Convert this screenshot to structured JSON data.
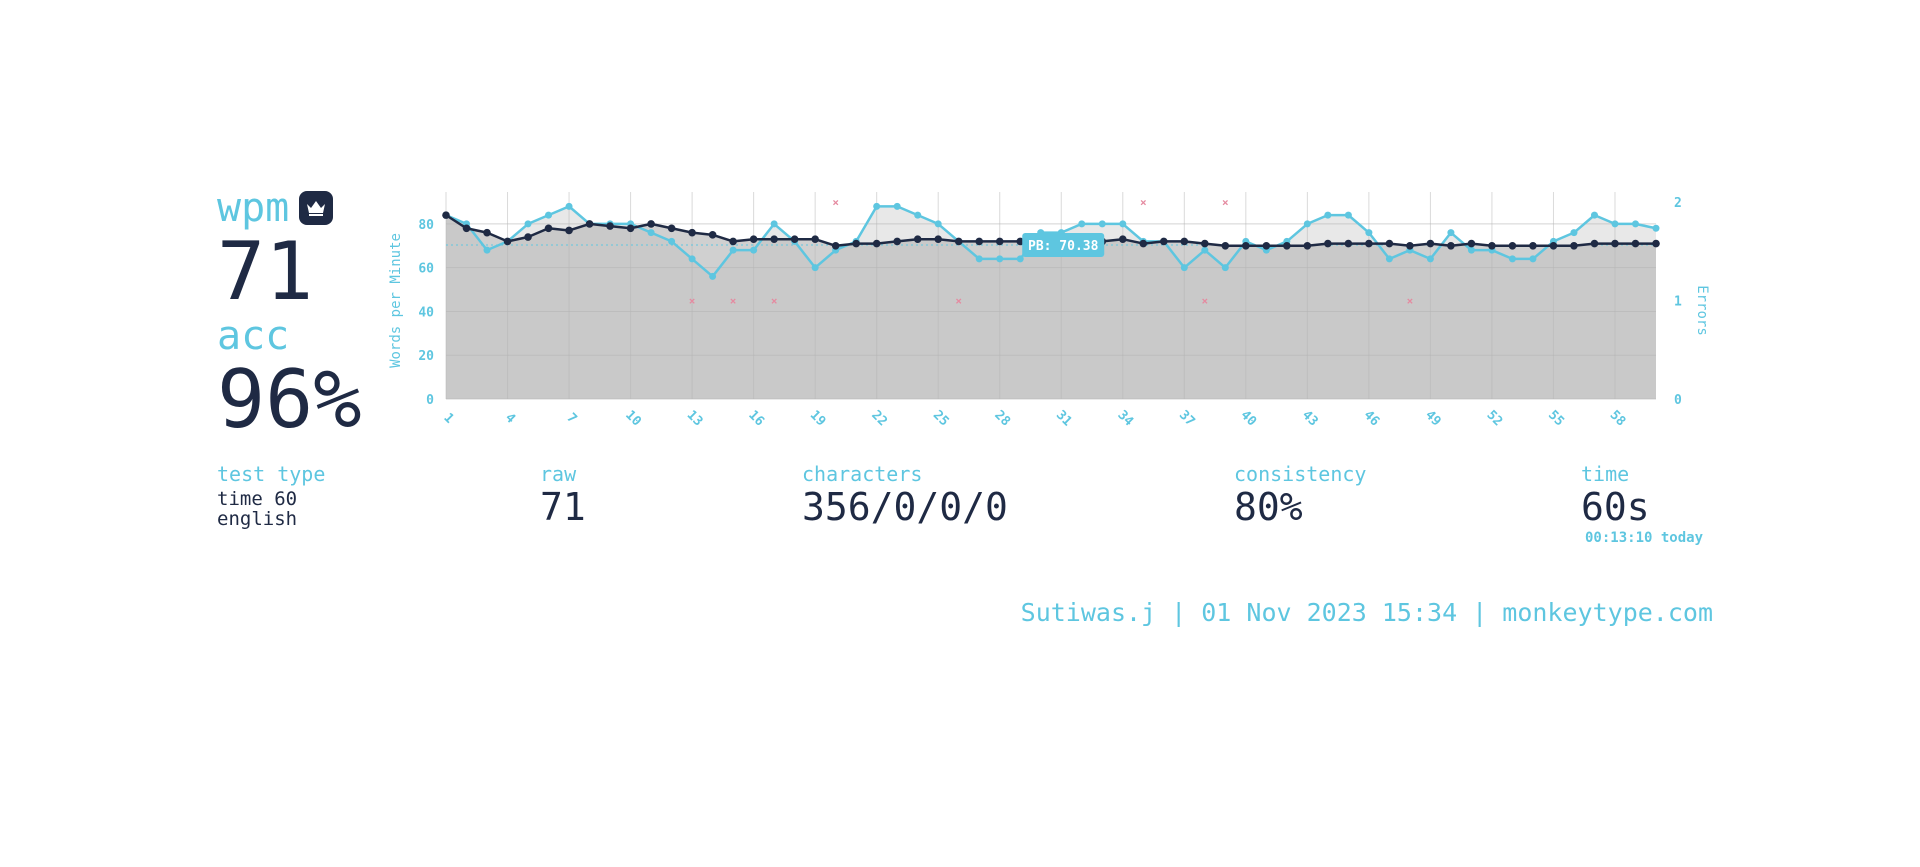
{
  "stats": {
    "wpm_label": "wpm",
    "wpm_value": "71",
    "acc_label": "acc",
    "acc_value": "96%",
    "crown_icon": "crown-icon"
  },
  "details": {
    "test_type_label": "test type",
    "test_type_line1": "time 60",
    "test_type_line2": "english",
    "raw_label": "raw",
    "raw_value": "71",
    "characters_label": "characters",
    "characters_value": "356/0/0/0",
    "consistency_label": "consistency",
    "consistency_value": "80%",
    "time_label": "time",
    "time_value": "60s",
    "time_today": "00:13:10 today"
  },
  "footer": "Sutiwas.j | 01 Nov 2023 15:34 | monkeytype.com",
  "colors": {
    "accent": "#5ec6e0",
    "text": "#1f2a44",
    "error": "#e58aa0",
    "fill": "#d0d0d0"
  },
  "chart_data": {
    "type": "line",
    "ylabel": "Words per Minute",
    "y2label": "Errors",
    "ylim": [
      0,
      90
    ],
    "y2lim": [
      0,
      2
    ],
    "yticks": [
      0,
      20,
      40,
      60,
      80
    ],
    "y2ticks": [
      0,
      1,
      2
    ],
    "x": [
      1,
      2,
      3,
      4,
      5,
      6,
      7,
      8,
      9,
      10,
      11,
      12,
      13,
      14,
      15,
      16,
      17,
      18,
      19,
      20,
      21,
      22,
      23,
      24,
      25,
      26,
      27,
      28,
      29,
      30,
      31,
      32,
      33,
      34,
      35,
      36,
      37,
      38,
      39,
      40,
      41,
      42,
      43,
      44,
      45,
      46,
      47,
      48,
      49,
      50,
      51,
      52,
      53,
      54,
      55,
      56,
      57,
      58,
      59,
      60
    ],
    "xticks": [
      1,
      4,
      7,
      10,
      13,
      16,
      19,
      22,
      25,
      28,
      31,
      34,
      37,
      40,
      43,
      46,
      49,
      52,
      55,
      58
    ],
    "pb_label": "PB: 70.38",
    "pb_value": 70.38,
    "series": [
      {
        "values": [
          84,
          80,
          68,
          72,
          80,
          84,
          88,
          80,
          80,
          80,
          76,
          72,
          64,
          56,
          68,
          68,
          80,
          72,
          60,
          68,
          72,
          88,
          88,
          84,
          80,
          72,
          64,
          64,
          64,
          76,
          76,
          80,
          80,
          80,
          72,
          72,
          60,
          68,
          60,
          72,
          68,
          72,
          80,
          84,
          84,
          76,
          64,
          68,
          64,
          76,
          68,
          68,
          64,
          64,
          72,
          76,
          84,
          80,
          80,
          78
        ]
      },
      {
        "values": [
          84,
          78,
          76,
          72,
          74,
          78,
          77,
          80,
          79,
          78,
          80,
          78,
          76,
          75,
          72,
          73,
          73,
          73,
          73,
          70,
          71,
          71,
          72,
          73,
          73,
          72,
          72,
          72,
          72,
          72,
          72,
          72,
          72,
          73,
          71,
          72,
          72,
          71,
          70,
          70,
          70,
          70,
          70,
          71,
          71,
          71,
          71,
          70,
          71,
          70,
          71,
          70,
          70,
          70,
          70,
          70,
          71,
          71,
          71,
          71
        ]
      }
    ],
    "errors": [
      {
        "x": 13,
        "y": 1
      },
      {
        "x": 15,
        "y": 1
      },
      {
        "x": 17,
        "y": 1
      },
      {
        "x": 20,
        "y": 2
      },
      {
        "x": 26,
        "y": 1
      },
      {
        "x": 35,
        "y": 2
      },
      {
        "x": 38,
        "y": 1
      },
      {
        "x": 39,
        "y": 2
      },
      {
        "x": 48,
        "y": 1
      }
    ]
  }
}
